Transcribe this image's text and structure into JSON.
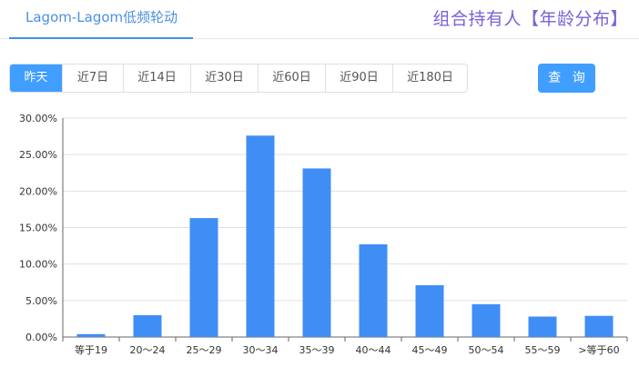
{
  "header": {
    "tab_label": "Lagom-Lagom低频轮动",
    "title": "组合持有人【年龄分布】"
  },
  "controls": {
    "ranges": [
      "昨天",
      "近7日",
      "近14日",
      "近30日",
      "近60日",
      "近90日",
      "近180日"
    ],
    "active_index": 0,
    "query_label": "查 询"
  },
  "colors": {
    "bar": "#3f8ef5",
    "accent": "#409eff",
    "title": "#7b61d6"
  },
  "chart_data": {
    "type": "bar",
    "categories": [
      "等于19",
      "20～24",
      "25～29",
      "30～34",
      "35～39",
      "40～44",
      "45～49",
      "50～54",
      "55～59",
      ">等于60"
    ],
    "values": [
      0.4,
      3.0,
      16.3,
      27.6,
      23.1,
      12.7,
      7.1,
      4.5,
      2.8,
      2.9
    ],
    "ylim": [
      0,
      30
    ],
    "yticks": [
      0,
      5,
      10,
      15,
      20,
      25,
      30
    ],
    "ytick_labels": [
      "0.00%",
      "5.00%",
      "10.00%",
      "15.00%",
      "20.00%",
      "25.00%",
      "30.00%"
    ],
    "grid": true,
    "xlabel": "",
    "ylabel": ""
  }
}
